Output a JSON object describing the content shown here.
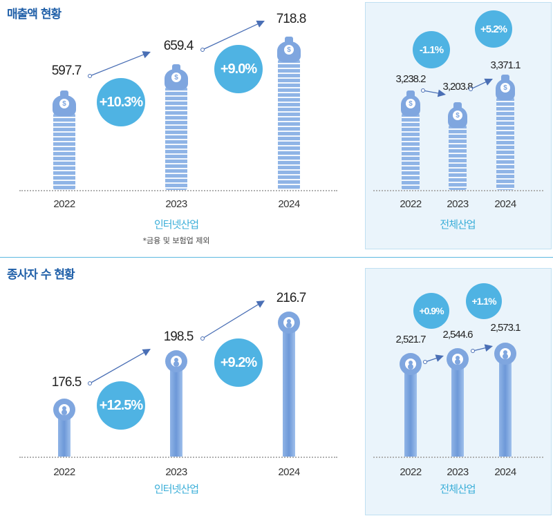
{
  "chart_data": [
    {
      "type": "bar",
      "title": "매출액 현황",
      "xlabel": "인터넷산업",
      "note": "*금융 및 보험업 제외",
      "categories": [
        "2022",
        "2023",
        "2024"
      ],
      "values": [
        597.7,
        659.4,
        718.8
      ],
      "value_labels": [
        "597.7",
        "659.4",
        "718.8"
      ],
      "growth_labels": [
        "+10.3%",
        "+9.0%"
      ],
      "icon": "money-bag-icon"
    },
    {
      "type": "bar",
      "xlabel": "전체산업",
      "categories": [
        "2022",
        "2023",
        "2024"
      ],
      "values": [
        3238.2,
        3203.8,
        3371.1
      ],
      "value_labels": [
        "3,238.2",
        "3,203.8",
        "3,371.1"
      ],
      "growth_labels": [
        "-1.1%",
        "+5.2%"
      ],
      "icon": "money-bag-icon"
    },
    {
      "type": "bar",
      "title": "종사자 수 현황",
      "xlabel": "인터넷산업",
      "categories": [
        "2022",
        "2023",
        "2024"
      ],
      "values": [
        176.5,
        198.5,
        216.7
      ],
      "value_labels": [
        "176.5",
        "198.5",
        "216.7"
      ],
      "growth_labels": [
        "+12.5%",
        "+9.2%"
      ],
      "icon": "person-gear-icon"
    },
    {
      "type": "bar",
      "xlabel": "전체산업",
      "categories": [
        "2022",
        "2023",
        "2024"
      ],
      "values": [
        2521.7,
        2544.6,
        2573.1
      ],
      "value_labels": [
        "2,521.7",
        "2,544.6",
        "2,573.1"
      ],
      "growth_labels": [
        "+0.9%",
        "+1.1%"
      ],
      "icon": "person-gear-icon"
    }
  ],
  "colors": {
    "title": "#1f5fa8",
    "accent": "#4fb3e3",
    "bar": "#7fa6df",
    "panel": "#eaf4fb"
  }
}
